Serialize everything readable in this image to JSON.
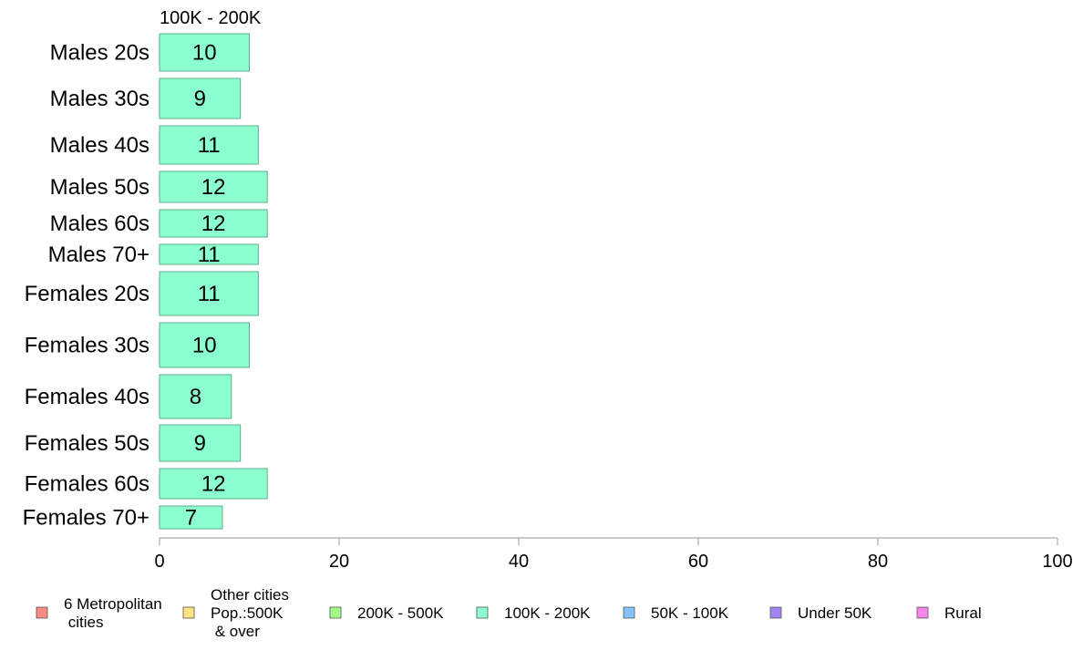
{
  "chart_data": {
    "type": "bar",
    "orientation": "horizontal",
    "panel_title": "100K - 200K",
    "categories": [
      "Males 20s",
      "Males 30s",
      "Males 40s",
      "Males 50s",
      "Males 60s",
      "Males 70+",
      "Females 20s",
      "Females 30s",
      "Females 40s",
      "Females 50s",
      "Females 60s",
      "Females 70+"
    ],
    "series": [
      {
        "values": [
          10,
          9,
          11,
          12,
          12,
          11,
          11,
          10,
          8,
          9,
          12,
          7
        ],
        "color": "#8cffd0"
      }
    ],
    "data_labels": [
      "10",
      "9",
      "11",
      "12",
      "12",
      "11",
      "11",
      "10",
      "8",
      "9",
      "12",
      "7"
    ],
    "xlim": [
      0,
      100
    ],
    "x_ticks": [
      "0",
      "20",
      "40",
      "60",
      "80",
      "100"
    ],
    "grid": false,
    "legend": {
      "placement": "bottom",
      "items": [
        {
          "label": "6 Metropolitan\n cities",
          "color": "#f88c84"
        },
        {
          "label": "Other cities\nPop.:500K\n & over",
          "color": "#fce484"
        },
        {
          "label": "200K - 500K",
          "color": "#a4fc84"
        },
        {
          "label": "100K - 200K",
          "color": "#8cffd0"
        },
        {
          "label": "50K - 100K",
          "color": "#84c4f8"
        },
        {
          "label": "Under 50K",
          "color": "#a484f0"
        },
        {
          "label": "Rural",
          "color": "#f884e8"
        }
      ]
    },
    "colors": {
      "bar_stroke": "#5fae8a",
      "axis": "#999999"
    }
  }
}
